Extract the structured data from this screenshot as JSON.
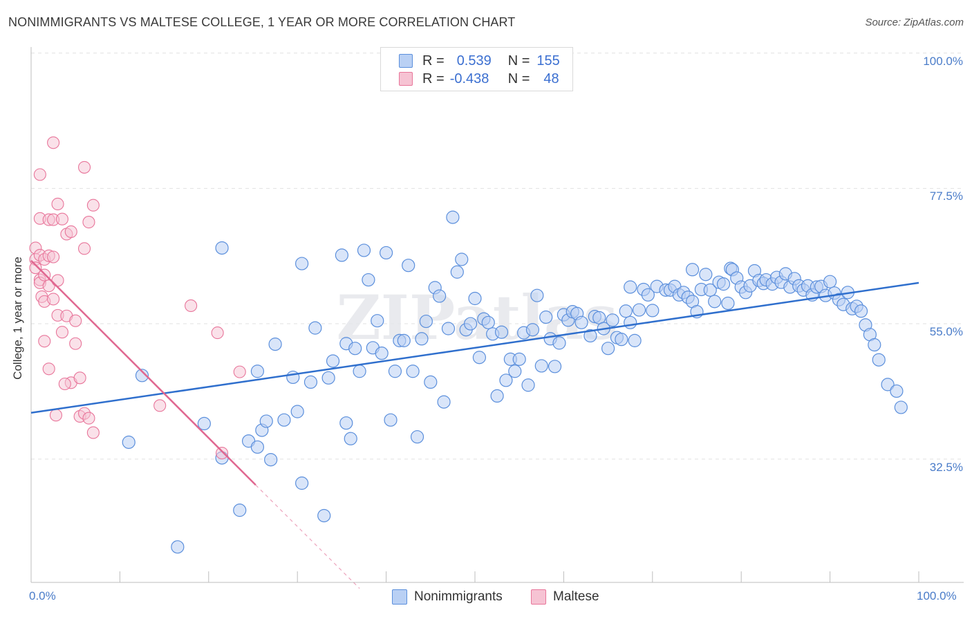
{
  "title": "NONIMMIGRANTS VS MALTESE COLLEGE, 1 YEAR OR MORE CORRELATION CHART",
  "source": "Source: ZipAtlas.com",
  "watermark": "ZIPatlas",
  "colors": {
    "blue": "#5b8fdc",
    "blue_fill": "#b9d0f4",
    "pink": "#e8759a",
    "pink_fill": "#f6c3d3",
    "blue_line": "#2f6fcd",
    "pink_line": "#e06790"
  },
  "legend": {
    "rows": [
      {
        "r_label": "R =",
        "r_value": "0.539",
        "n_label": "N =",
        "n_value": "155"
      },
      {
        "r_label": "R =",
        "r_value": "-0.438",
        "n_label": "N =",
        "n_value": "48"
      }
    ],
    "bottom": [
      "Nonimmigrants",
      "Maltese"
    ]
  },
  "chart_data": {
    "type": "scatter",
    "title": "NONIMMIGRANTS VS MALTESE COLLEGE, 1 YEAR OR MORE CORRELATION CHART",
    "xlabel": "",
    "ylabel": "College, 1 year or more",
    "xlim": [
      0,
      100
    ],
    "ylim": [
      12,
      101
    ],
    "y_ticks": [
      {
        "value": 100,
        "label": "100.0%"
      },
      {
        "value": 77.5,
        "label": "77.5%"
      },
      {
        "value": 55,
        "label": "55.0%"
      },
      {
        "value": 32.5,
        "label": "32.5%"
      }
    ],
    "x_tick_labels": [
      "0.0%",
      "100.0%"
    ],
    "series": [
      {
        "name": "Nonimmigrants",
        "r": 0.539,
        "n": 155,
        "trend": [
          [
            0,
            40.2
          ],
          [
            100,
            61.8
          ]
        ],
        "points": [
          [
            12.5,
            46.4
          ],
          [
            11.0,
            35.3
          ],
          [
            19.5,
            38.4
          ],
          [
            21.5,
            67.6
          ],
          [
            21.5,
            32.7
          ],
          [
            23.5,
            24.0
          ],
          [
            16.5,
            17.9
          ],
          [
            24.5,
            35.5
          ],
          [
            25.5,
            34.5
          ],
          [
            25.5,
            47.1
          ],
          [
            26.0,
            37.3
          ],
          [
            26.5,
            38.8
          ],
          [
            27.0,
            32.4
          ],
          [
            27.5,
            51.6
          ],
          [
            28.5,
            39.0
          ],
          [
            29.5,
            46.1
          ],
          [
            30.0,
            40.4
          ],
          [
            30.5,
            65.0
          ],
          [
            30.5,
            28.5
          ],
          [
            31.5,
            45.3
          ],
          [
            32.0,
            54.3
          ],
          [
            33.5,
            46.0
          ],
          [
            33.0,
            23.1
          ],
          [
            34.0,
            48.8
          ],
          [
            35.0,
            66.4
          ],
          [
            35.5,
            38.5
          ],
          [
            35.5,
            51.7
          ],
          [
            36.0,
            35.9
          ],
          [
            36.5,
            50.9
          ],
          [
            37.0,
            47.1
          ],
          [
            37.5,
            67.2
          ],
          [
            38.0,
            62.3
          ],
          [
            38.5,
            51.0
          ],
          [
            39.0,
            55.5
          ],
          [
            39.5,
            50.1
          ],
          [
            40.0,
            66.8
          ],
          [
            40.5,
            39.0
          ],
          [
            41.0,
            47.1
          ],
          [
            41.5,
            52.2
          ],
          [
            42.0,
            52.2
          ],
          [
            42.5,
            64.7
          ],
          [
            43.0,
            47.1
          ],
          [
            43.5,
            36.2
          ],
          [
            44.0,
            52.5
          ],
          [
            44.5,
            55.4
          ],
          [
            45.0,
            45.3
          ],
          [
            45.5,
            61.0
          ],
          [
            46.0,
            59.6
          ],
          [
            46.5,
            42.0
          ],
          [
            47.0,
            54.2
          ],
          [
            47.5,
            72.7
          ],
          [
            48.0,
            63.6
          ],
          [
            48.5,
            65.7
          ],
          [
            49.0,
            54.0
          ],
          [
            49.5,
            55.0
          ],
          [
            50.0,
            59.2
          ],
          [
            50.5,
            49.4
          ],
          [
            51.0,
            55.8
          ],
          [
            51.5,
            55.2
          ],
          [
            52.0,
            53.3
          ],
          [
            52.5,
            43.0
          ],
          [
            53.0,
            53.6
          ],
          [
            53.5,
            45.6
          ],
          [
            54.0,
            49.1
          ],
          [
            54.5,
            47.1
          ],
          [
            55.0,
            49.1
          ],
          [
            55.5,
            53.5
          ],
          [
            56.0,
            44.8
          ],
          [
            56.5,
            54.0
          ],
          [
            57.0,
            59.7
          ],
          [
            57.5,
            48.0
          ],
          [
            58.0,
            56.1
          ],
          [
            58.5,
            52.5
          ],
          [
            59.0,
            47.9
          ],
          [
            59.5,
            51.8
          ],
          [
            60.0,
            56.5
          ],
          [
            60.5,
            55.6
          ],
          [
            61.0,
            57.0
          ],
          [
            61.5,
            56.7
          ],
          [
            62.0,
            55.2
          ],
          [
            63.0,
            53.0
          ],
          [
            63.5,
            56.2
          ],
          [
            64.0,
            56.0
          ],
          [
            64.5,
            54.2
          ],
          [
            65.0,
            50.9
          ],
          [
            65.5,
            55.6
          ],
          [
            66.0,
            52.7
          ],
          [
            66.5,
            52.4
          ],
          [
            67.0,
            57.1
          ],
          [
            67.5,
            55.2
          ],
          [
            67.5,
            61.1
          ],
          [
            68.0,
            52.2
          ],
          [
            68.5,
            57.3
          ],
          [
            69.0,
            60.7
          ],
          [
            69.5,
            59.8
          ],
          [
            70.0,
            57.2
          ],
          [
            70.5,
            61.2
          ],
          [
            71.5,
            60.6
          ],
          [
            72.0,
            60.6
          ],
          [
            72.5,
            61.2
          ],
          [
            73.0,
            59.8
          ],
          [
            73.5,
            60.2
          ],
          [
            74.0,
            59.4
          ],
          [
            74.5,
            58.7
          ],
          [
            74.5,
            64.0
          ],
          [
            75.0,
            57.0
          ],
          [
            75.5,
            60.7
          ],
          [
            76.0,
            63.2
          ],
          [
            76.5,
            60.6
          ],
          [
            77.0,
            58.7
          ],
          [
            77.5,
            61.9
          ],
          [
            78.0,
            61.6
          ],
          [
            78.5,
            58.4
          ],
          [
            78.8,
            64.2
          ],
          [
            79.0,
            64.0
          ],
          [
            79.5,
            62.6
          ],
          [
            80.0,
            61.1
          ],
          [
            80.5,
            60.2
          ],
          [
            81.0,
            61.3
          ],
          [
            81.5,
            63.8
          ],
          [
            82.0,
            62.2
          ],
          [
            82.5,
            61.7
          ],
          [
            82.8,
            62.3
          ],
          [
            83.5,
            61.6
          ],
          [
            84.0,
            62.7
          ],
          [
            84.5,
            61.9
          ],
          [
            85.0,
            63.3
          ],
          [
            85.5,
            61.1
          ],
          [
            86.0,
            62.5
          ],
          [
            86.5,
            61.3
          ],
          [
            87.0,
            60.6
          ],
          [
            87.5,
            61.3
          ],
          [
            88.0,
            59.8
          ],
          [
            88.5,
            61.1
          ],
          [
            89.0,
            61.2
          ],
          [
            89.5,
            59.7
          ],
          [
            90.0,
            62.0
          ],
          [
            90.5,
            60.1
          ],
          [
            91.0,
            59.0
          ],
          [
            91.5,
            58.2
          ],
          [
            92.0,
            60.2
          ],
          [
            92.5,
            57.5
          ],
          [
            93.0,
            57.9
          ],
          [
            93.5,
            57.1
          ],
          [
            94.0,
            54.8
          ],
          [
            94.5,
            53.2
          ],
          [
            95.0,
            51.5
          ],
          [
            95.5,
            49.0
          ],
          [
            96.5,
            44.9
          ],
          [
            97.5,
            43.8
          ],
          [
            98.0,
            41.1
          ]
        ]
      },
      {
        "name": "Maltese",
        "r": -0.438,
        "n": 48,
        "trend": [
          [
            0,
            65.5
          ],
          [
            25.3,
            28.2
          ]
        ],
        "trend_extension": [
          [
            25.3,
            28.2
          ],
          [
            37.0,
            11.0
          ]
        ],
        "points": [
          [
            0.5,
            67.6
          ],
          [
            0.5,
            65.7
          ],
          [
            0.5,
            64.3
          ],
          [
            1.0,
            79.8
          ],
          [
            1.0,
            72.5
          ],
          [
            1.0,
            66.4
          ],
          [
            1.0,
            62.3
          ],
          [
            1.0,
            61.8
          ],
          [
            1.2,
            59.5
          ],
          [
            1.5,
            65.7
          ],
          [
            1.5,
            63.1
          ],
          [
            1.5,
            58.7
          ],
          [
            1.5,
            52.1
          ],
          [
            2.0,
            72.3
          ],
          [
            2.0,
            66.3
          ],
          [
            2.0,
            61.3
          ],
          [
            2.0,
            47.5
          ],
          [
            2.5,
            85.1
          ],
          [
            2.5,
            72.3
          ],
          [
            2.5,
            66.1
          ],
          [
            2.5,
            59.1
          ],
          [
            3.0,
            74.9
          ],
          [
            3.0,
            62.2
          ],
          [
            3.0,
            56.4
          ],
          [
            3.5,
            72.4
          ],
          [
            3.5,
            53.6
          ],
          [
            4.0,
            69.9
          ],
          [
            4.0,
            56.3
          ],
          [
            4.5,
            70.3
          ],
          [
            4.5,
            45.2
          ],
          [
            5.0,
            51.7
          ],
          [
            5.0,
            55.5
          ],
          [
            5.5,
            46.0
          ],
          [
            5.5,
            39.6
          ],
          [
            6.0,
            81.0
          ],
          [
            6.0,
            67.5
          ],
          [
            6.0,
            40.1
          ],
          [
            6.5,
            71.9
          ],
          [
            6.5,
            39.3
          ],
          [
            7.0,
            74.7
          ],
          [
            7.0,
            36.9
          ],
          [
            14.5,
            41.4
          ],
          [
            18.0,
            58.0
          ],
          [
            21.0,
            53.5
          ],
          [
            23.5,
            47.0
          ],
          [
            21.5,
            33.5
          ],
          [
            2.8,
            39.8
          ],
          [
            3.8,
            45.0
          ]
        ]
      }
    ]
  }
}
